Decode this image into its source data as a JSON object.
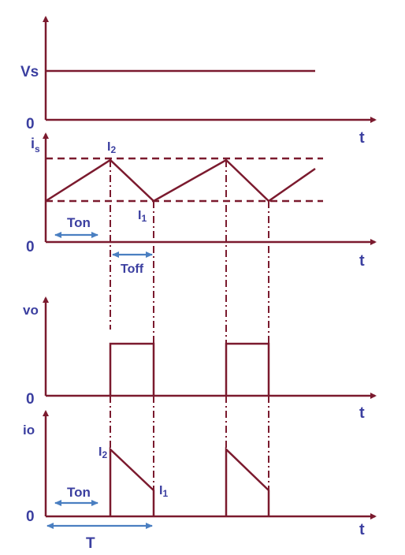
{
  "labels": {
    "vs": "Vs",
    "zero": "0",
    "t": "t",
    "is_main": "i",
    "is_sub": "s",
    "i_main": "I",
    "sub_2": "2",
    "sub_1": "1",
    "ton": "Ton",
    "toff": "Toff",
    "vo": "vo",
    "io": "io",
    "period": "T"
  },
  "colors": {
    "waveform": "#7b1a2e",
    "label": "#3b3fa0",
    "dimension_arrow": "#4a7fc1"
  }
}
